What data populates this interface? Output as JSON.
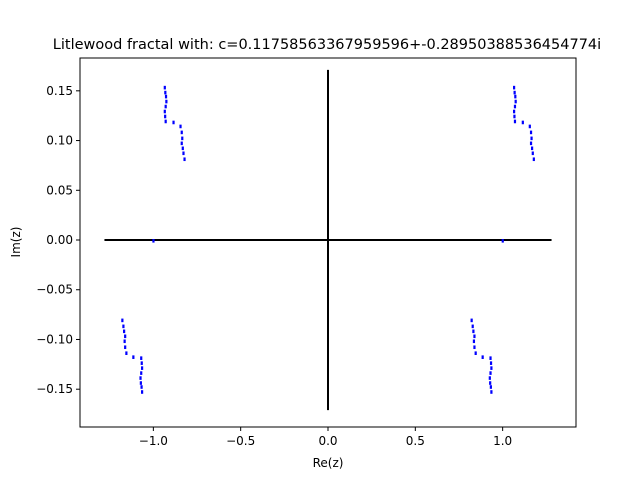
{
  "chart_data": {
    "type": "scatter",
    "title": "Litlewood fractal with: c=0.11758563367959596+-0.28950388536454774i",
    "xlabel": "Re(z)",
    "ylabel": "Im(z)",
    "xlim": [
      -1.42,
      1.42
    ],
    "ylim": [
      -0.188,
      0.183
    ],
    "xticks": [
      -1.0,
      -0.5,
      0.0,
      0.5,
      1.0
    ],
    "xtick_labels": [
      "−1.0",
      "−0.5",
      "0.0",
      "0.5",
      "1.0"
    ],
    "yticks": [
      -0.15,
      -0.1,
      -0.05,
      0.0,
      0.05,
      0.1,
      0.15
    ],
    "ytick_labels": [
      "−0.15",
      "−0.10",
      "−0.05",
      "0.00",
      "0.05",
      "0.10",
      "0.15"
    ],
    "grid": false,
    "point_color": "#0000ff",
    "axis_line_color": "#000000",
    "reference_lines": {
      "horizontal": {
        "y": 0.0,
        "x_range": [
          -1.28,
          1.28
        ]
      },
      "vertical": {
        "x": 0.0,
        "y_range": [
          -0.171,
          0.171
        ]
      }
    },
    "clusters": [
      {
        "name": "upper-left",
        "points": [
          [
            -0.935,
            0.153
          ],
          [
            -0.932,
            0.148
          ],
          [
            -0.928,
            0.144
          ],
          [
            -0.926,
            0.139
          ],
          [
            -0.93,
            0.134
          ],
          [
            -0.935,
            0.129
          ],
          [
            -0.933,
            0.124
          ],
          [
            -0.93,
            0.119
          ],
          [
            -0.885,
            0.118
          ],
          [
            -0.845,
            0.114
          ],
          [
            -0.838,
            0.108
          ],
          [
            -0.835,
            0.102
          ],
          [
            -0.838,
            0.097
          ],
          [
            -0.832,
            0.092
          ],
          [
            -0.828,
            0.087
          ],
          [
            -0.822,
            0.081
          ]
        ]
      },
      {
        "name": "upper-right",
        "points": [
          [
            1.065,
            0.153
          ],
          [
            1.068,
            0.148
          ],
          [
            1.072,
            0.144
          ],
          [
            1.074,
            0.139
          ],
          [
            1.07,
            0.134
          ],
          [
            1.065,
            0.129
          ],
          [
            1.067,
            0.124
          ],
          [
            1.07,
            0.119
          ],
          [
            1.115,
            0.118
          ],
          [
            1.155,
            0.114
          ],
          [
            1.162,
            0.108
          ],
          [
            1.165,
            0.102
          ],
          [
            1.162,
            0.097
          ],
          [
            1.168,
            0.092
          ],
          [
            1.172,
            0.087
          ],
          [
            1.178,
            0.081
          ]
        ]
      },
      {
        "name": "lower-left",
        "points": [
          [
            -1.178,
            -0.081
          ],
          [
            -1.172,
            -0.087
          ],
          [
            -1.168,
            -0.092
          ],
          [
            -1.162,
            -0.097
          ],
          [
            -1.165,
            -0.102
          ],
          [
            -1.162,
            -0.108
          ],
          [
            -1.155,
            -0.114
          ],
          [
            -1.115,
            -0.118
          ],
          [
            -1.07,
            -0.119
          ],
          [
            -1.067,
            -0.124
          ],
          [
            -1.065,
            -0.129
          ],
          [
            -1.07,
            -0.134
          ],
          [
            -1.074,
            -0.139
          ],
          [
            -1.072,
            -0.144
          ],
          [
            -1.068,
            -0.148
          ],
          [
            -1.065,
            -0.153
          ]
        ]
      },
      {
        "name": "lower-right",
        "points": [
          [
            0.822,
            -0.081
          ],
          [
            0.828,
            -0.087
          ],
          [
            0.832,
            -0.092
          ],
          [
            0.838,
            -0.097
          ],
          [
            0.835,
            -0.102
          ],
          [
            0.838,
            -0.108
          ],
          [
            0.845,
            -0.114
          ],
          [
            0.885,
            -0.118
          ],
          [
            0.93,
            -0.119
          ],
          [
            0.933,
            -0.124
          ],
          [
            0.935,
            -0.129
          ],
          [
            0.93,
            -0.134
          ],
          [
            0.926,
            -0.139
          ],
          [
            0.928,
            -0.144
          ],
          [
            0.932,
            -0.148
          ],
          [
            0.935,
            -0.153
          ]
        ]
      },
      {
        "name": "near-axis",
        "points": [
          [
            -1.0,
            -0.001
          ],
          [
            1.0,
            -0.001
          ]
        ]
      }
    ]
  }
}
